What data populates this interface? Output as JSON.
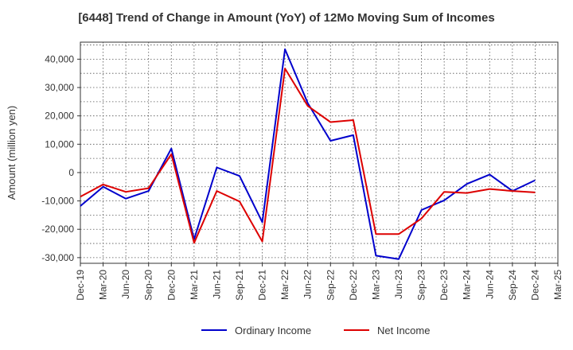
{
  "chart_data": {
    "type": "line",
    "title": "[6448]  Trend of Change in Amount (YoY) of 12Mo Moving Sum of Incomes",
    "xlabel": "",
    "ylabel": "Amount (million yen)",
    "ylim": [
      -32000,
      46000
    ],
    "yticks": [
      -30000,
      -20000,
      -10000,
      0,
      10000,
      20000,
      30000,
      40000
    ],
    "ytick_labels": [
      "-30,000",
      "-20,000",
      "-10,000",
      "0",
      "10,000",
      "20,000",
      "30,000",
      "40,000"
    ],
    "categories": [
      "Dec-19",
      "Mar-20",
      "Jun-20",
      "Sep-20",
      "Dec-20",
      "Mar-21",
      "Jun-21",
      "Sep-21",
      "Dec-21",
      "Mar-22",
      "Jun-22",
      "Sep-22",
      "Dec-22",
      "Mar-23",
      "Jun-23",
      "Sep-23",
      "Dec-23",
      "Mar-24",
      "Jun-24",
      "Sep-24",
      "Dec-24",
      "Mar-25"
    ],
    "grid": true,
    "legend_position": "bottom",
    "series": [
      {
        "name": "Ordinary Income",
        "color": "#0000cc",
        "values": [
          -11800,
          -5000,
          -9200,
          -6500,
          8500,
          -23500,
          1800,
          -1200,
          -17500,
          43500,
          24500,
          11200,
          13200,
          -29300,
          -30500,
          -13200,
          -9800,
          -4000,
          -700,
          -6500,
          -2700,
          null
        ]
      },
      {
        "name": "Net Income",
        "color": "#dd0000",
        "values": [
          -8500,
          -4200,
          -6800,
          -5500,
          6500,
          -24800,
          -6500,
          -10200,
          -24300,
          36700,
          23500,
          17800,
          18500,
          -21700,
          -21700,
          -16200,
          -6800,
          -7200,
          -5800,
          -6500,
          -7000,
          null
        ]
      }
    ]
  }
}
